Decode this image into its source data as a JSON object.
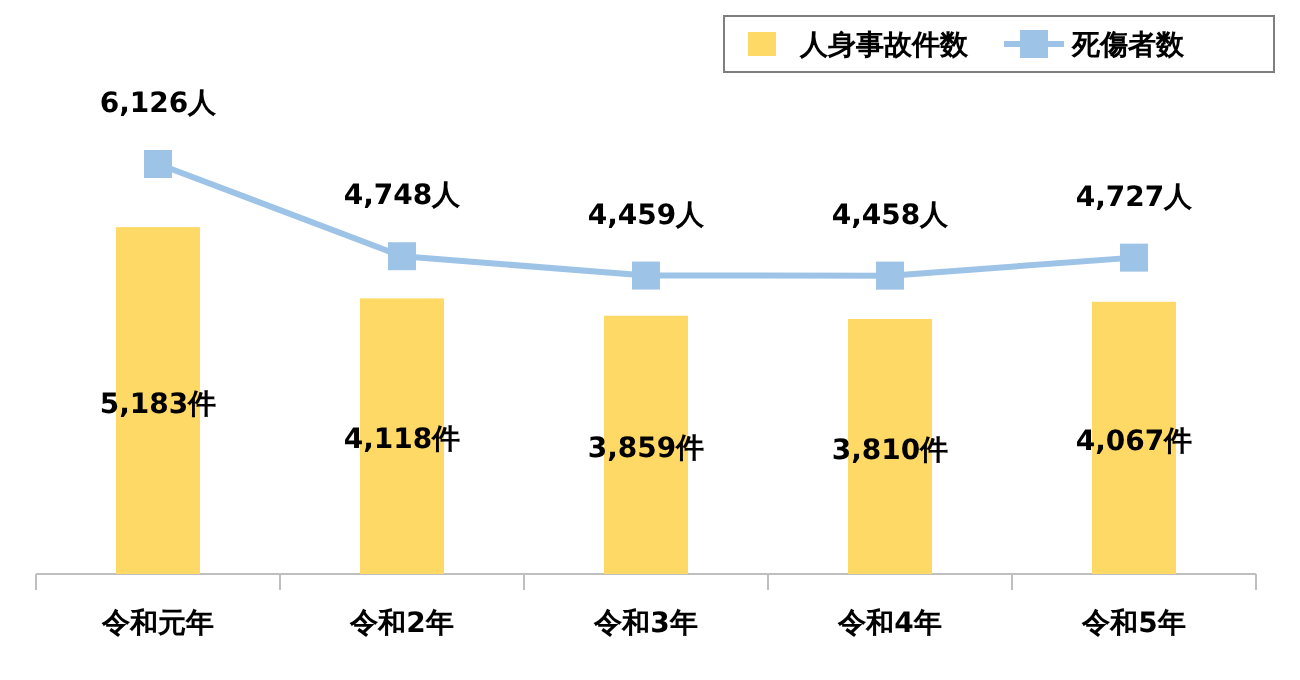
{
  "chart_data": {
    "type": "bar",
    "categories": [
      "令和元年",
      "令和2年",
      "令和3年",
      "令和4年",
      "令和5年"
    ],
    "series": [
      {
        "name": "人身事故件数",
        "color": "#ffd966",
        "values": [
          5183,
          4118,
          3859,
          3810,
          4067
        ],
        "value_labels": [
          "5,183件",
          "4,118件",
          "3,859件",
          "3,810件",
          "4,067件"
        ]
      },
      {
        "name": "死傷者数",
        "type": "line",
        "color": "#9dc3e6",
        "values": [
          6126,
          4748,
          4459,
          4458,
          4727
        ],
        "value_labels": [
          "6,126人",
          "4,748人",
          "4,459人",
          "4,458人",
          "4,727人"
        ]
      }
    ],
    "marker": "square",
    "line_style": "solid",
    "legend": "top right",
    "grid": false
  }
}
